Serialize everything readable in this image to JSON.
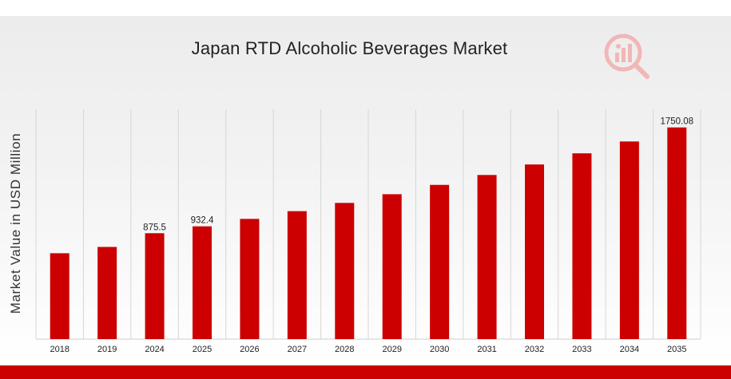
{
  "chart_data": {
    "type": "bar",
    "title": "Japan RTD Alcoholic Beverages Market",
    "ylabel": "Market Value in USD Million",
    "xlabel": "",
    "categories": [
      "2018",
      "2019",
      "2024",
      "2025",
      "2026",
      "2027",
      "2028",
      "2029",
      "2030",
      "2031",
      "2032",
      "2033",
      "2034",
      "2035"
    ],
    "values": [
      710,
      762,
      875.5,
      932.4,
      994,
      1058,
      1126,
      1198,
      1275,
      1357,
      1444,
      1536,
      1634,
      1750.08
    ],
    "data_labels": [
      {
        "category": "2024",
        "text": "875.5"
      },
      {
        "category": "2025",
        "text": "932.4"
      },
      {
        "category": "2035",
        "text": "1750.08"
      }
    ],
    "ylim": [
      0,
      1900
    ],
    "grid": "vertical",
    "bar_color": "#cc0000"
  },
  "colors": {
    "accent": "#cc0000",
    "background": "#efefef"
  },
  "logo": {
    "icon": "analytics-magnifier-logo"
  }
}
